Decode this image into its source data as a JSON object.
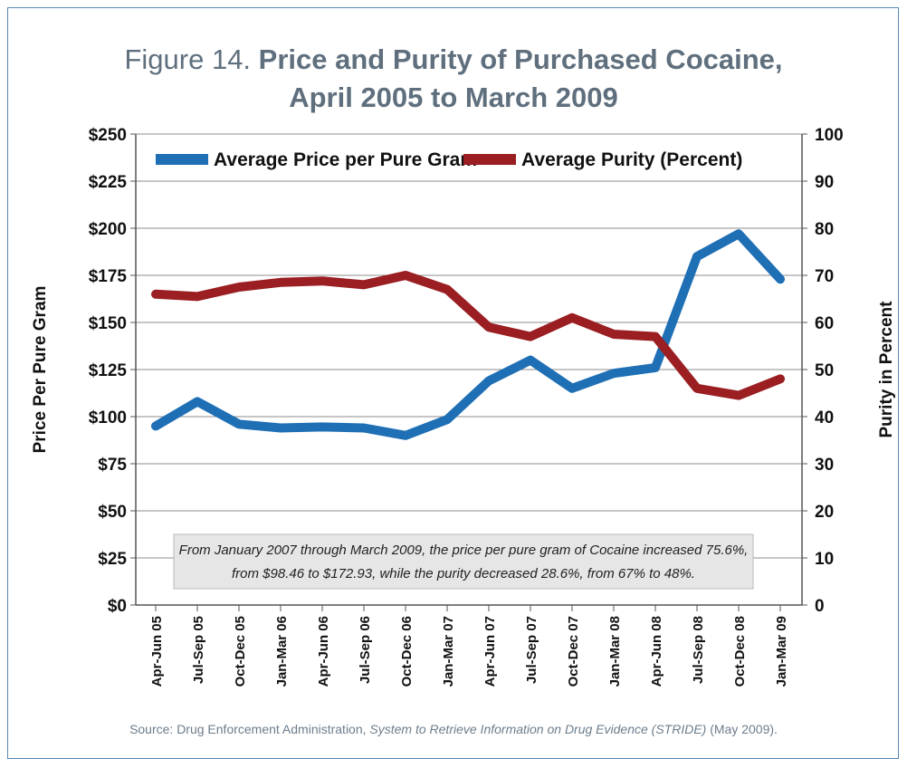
{
  "figure": {
    "title_prefix": "Figure 14.",
    "title_bold_line1": "Price and Purity of Purchased Cocaine,",
    "title_line2": "April 2005 to March 2009"
  },
  "chart_data": {
    "type": "line",
    "categories": [
      "Apr-Jun 05",
      "Jul-Sep 05",
      "Oct-Dec 05",
      "Jan-Mar 06",
      "Apr-Jun 06",
      "Jul-Sep 06",
      "Oct-Dec 06",
      "Jan-Mar 07",
      "Apr-Jun 07",
      "Jul-Sep 07",
      "Oct-Dec 07",
      "Jan-Mar 08",
      "Apr-Jun 08",
      "Jul-Sep 08",
      "Oct-Dec 08",
      "Jan-Mar 09"
    ],
    "series": [
      {
        "name": "Average Price per Pure Gram",
        "axis": "left",
        "color": "#1f6fb5",
        "values": [
          95,
          108,
          96,
          94,
          94.5,
          94,
          90,
          98.46,
          119,
          130,
          115,
          123,
          126,
          185,
          197,
          172.93
        ]
      },
      {
        "name": "Average Purity (Percent)",
        "axis": "right",
        "color": "#9a1e22",
        "values": [
          66,
          65.5,
          67.5,
          68.5,
          68.8,
          68,
          70,
          67,
          59,
          57,
          61,
          57.5,
          57,
          46,
          44.5,
          48
        ]
      }
    ],
    "left_axis": {
      "label": "Price Per Pure Gram",
      "ticks": [
        "$0",
        "$25",
        "$50",
        "$75",
        "$100",
        "$125",
        "$150",
        "$175",
        "$200",
        "$225",
        "$250"
      ],
      "ylim": [
        0,
        250
      ]
    },
    "right_axis": {
      "label": "Purity in Percent",
      "ticks": [
        "0",
        "10",
        "20",
        "30",
        "40",
        "50",
        "60",
        "70",
        "80",
        "90",
        "100"
      ],
      "ylim": [
        0,
        100
      ]
    },
    "grid": true,
    "legend": "top",
    "annotation_lines": [
      "From January 2007 through March 2009, the price per pure gram of Cocaine increased 75.6%,",
      "from $98.46 to $172.93, while the purity decreased 28.6%, from 67% to 48%."
    ]
  },
  "source": {
    "prefix": "Source: Drug Enforcement Administration, ",
    "italic": "System to Retrieve Information on Drug Evidence (STRIDE)",
    "suffix": " (May 2009)."
  }
}
